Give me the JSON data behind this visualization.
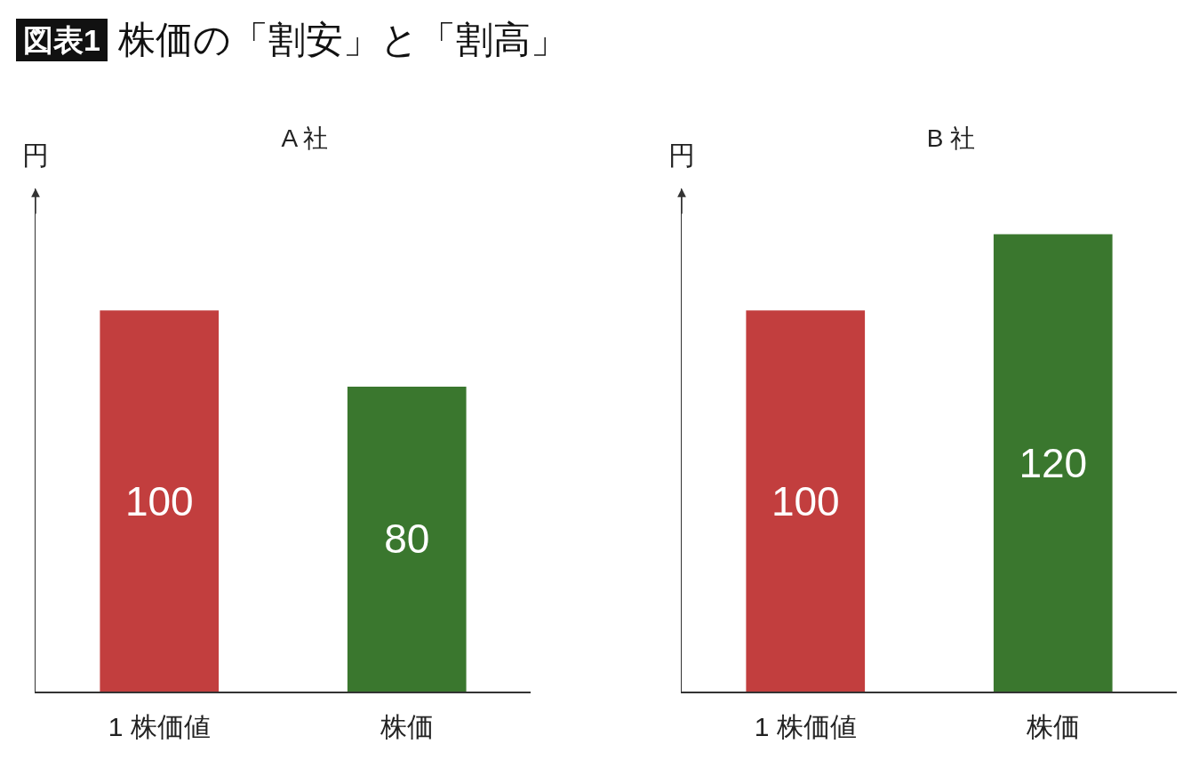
{
  "chart_data": [
    {
      "type": "other",
      "title": "株価の「割安」と「割高」",
      "annotations": [
        "図表1"
      ]
    },
    {
      "type": "bar",
      "title": "A 社",
      "ylabel": "円",
      "categories": [
        "1 株価値",
        "株価"
      ],
      "values": [
        100,
        80
      ],
      "colors": [
        "#c23e3e",
        "#3a772e"
      ],
      "ylim": [
        0,
        132
      ],
      "data_labels": true,
      "tick_labels": "x"
    },
    {
      "type": "bar",
      "title": "B 社",
      "ylabel": "円",
      "categories": [
        "1 株価値",
        "株価"
      ],
      "values": [
        100,
        120
      ],
      "colors": [
        "#c23e3e",
        "#3a772e"
      ],
      "ylim": [
        0,
        132
      ],
      "data_labels": true,
      "tick_labels": "x"
    }
  ]
}
